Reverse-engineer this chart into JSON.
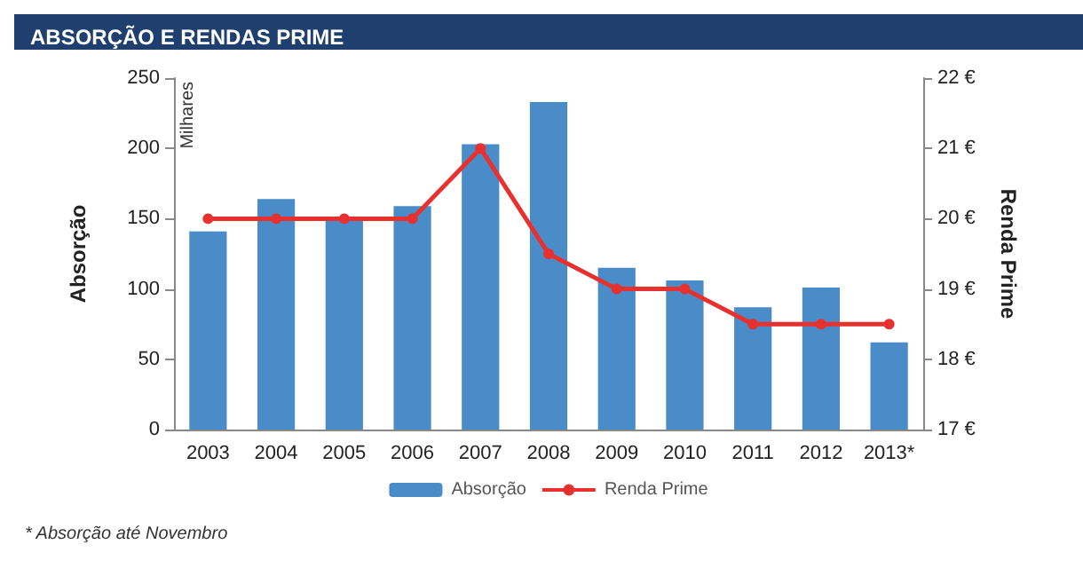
{
  "chart_data": {
    "type": "bar",
    "title": "ABSORÇÃO E RENDAS PRIME",
    "categories": [
      "2003",
      "2004",
      "2005",
      "2006",
      "2007",
      "2008",
      "2009",
      "2010",
      "2011",
      "2012",
      "2013*"
    ],
    "series": [
      {
        "name": "Absorção",
        "color": "#4a8cc8",
        "values": [
          141,
          164,
          150,
          159,
          203,
          233,
          115,
          106,
          87,
          101,
          62
        ]
      },
      {
        "name": "Renda Prime",
        "type": "line",
        "axis": "y2",
        "color": "#e8312f",
        "marker": "circle",
        "line_style": "solid",
        "values": [
          20,
          20,
          20,
          20,
          21,
          19.5,
          19,
          19,
          18.5,
          18.5,
          18.5
        ]
      }
    ],
    "ylabel": "Absorção",
    "y2label": "Renda Prime",
    "ylim": [
      0,
      250
    ],
    "yticks": [
      0,
      50,
      100,
      150,
      200,
      250
    ],
    "y2lim": [
      17,
      22
    ],
    "y2ticks": [
      {
        "value": 17,
        "label": "17 €"
      },
      {
        "value": 18,
        "label": "18 €"
      },
      {
        "value": 19,
        "label": "19 €"
      },
      {
        "value": 20,
        "label": "20 €"
      },
      {
        "value": 21,
        "label": "21 €"
      },
      {
        "value": 22,
        "label": "22 €"
      }
    ],
    "legend": "bottom",
    "annotations": [
      "Milhares",
      "* Absorção até Novembro"
    ]
  }
}
